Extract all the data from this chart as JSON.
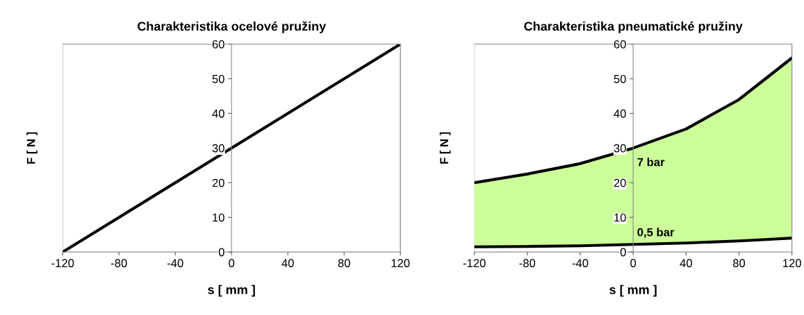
{
  "chart_data": [
    {
      "type": "line",
      "title": "Charakteristika ocelové pružiny",
      "xlabel": "s [ mm ]",
      "ylabel": "F [ N ]",
      "xlim": [
        -120,
        120
      ],
      "xticks": [
        -120,
        -80,
        -40,
        0,
        40,
        80,
        120
      ],
      "ylim": [
        0,
        60
      ],
      "yticks": [
        0,
        10,
        20,
        30,
        40,
        50,
        60
      ],
      "grid": false,
      "legend": false,
      "series": [
        {
          "x": [
            -120,
            120
          ],
          "values": [
            0,
            60
          ],
          "color": "#000000"
        }
      ]
    },
    {
      "type": "line",
      "title": "Charakteristika pneumatické pružiny",
      "xlabel": "s [ mm ]",
      "ylabel": "F [ N ]",
      "xlim": [
        -120,
        120
      ],
      "xticks": [
        -120,
        -80,
        -40,
        0,
        40,
        80,
        120
      ],
      "ylim": [
        0,
        60
      ],
      "yticks": [
        0,
        10,
        20,
        30,
        40,
        50,
        60
      ],
      "grid": false,
      "legend": false,
      "series": [
        {
          "name": "0,5 bar",
          "x": [
            -120,
            -80,
            -40,
            0,
            40,
            80,
            100,
            120
          ],
          "values": [
            1.5,
            1.6,
            1.8,
            2.2,
            2.6,
            3.2,
            3.6,
            4
          ],
          "color": "#000000"
        },
        {
          "type": "area",
          "name": "7 bar",
          "x": [
            -120,
            -80,
            -40,
            0,
            40,
            80,
            100,
            120
          ],
          "values": [
            20,
            22.5,
            25.5,
            30,
            35.5,
            44,
            50,
            56
          ],
          "color": "#ccff99"
        }
      ]
    }
  ]
}
